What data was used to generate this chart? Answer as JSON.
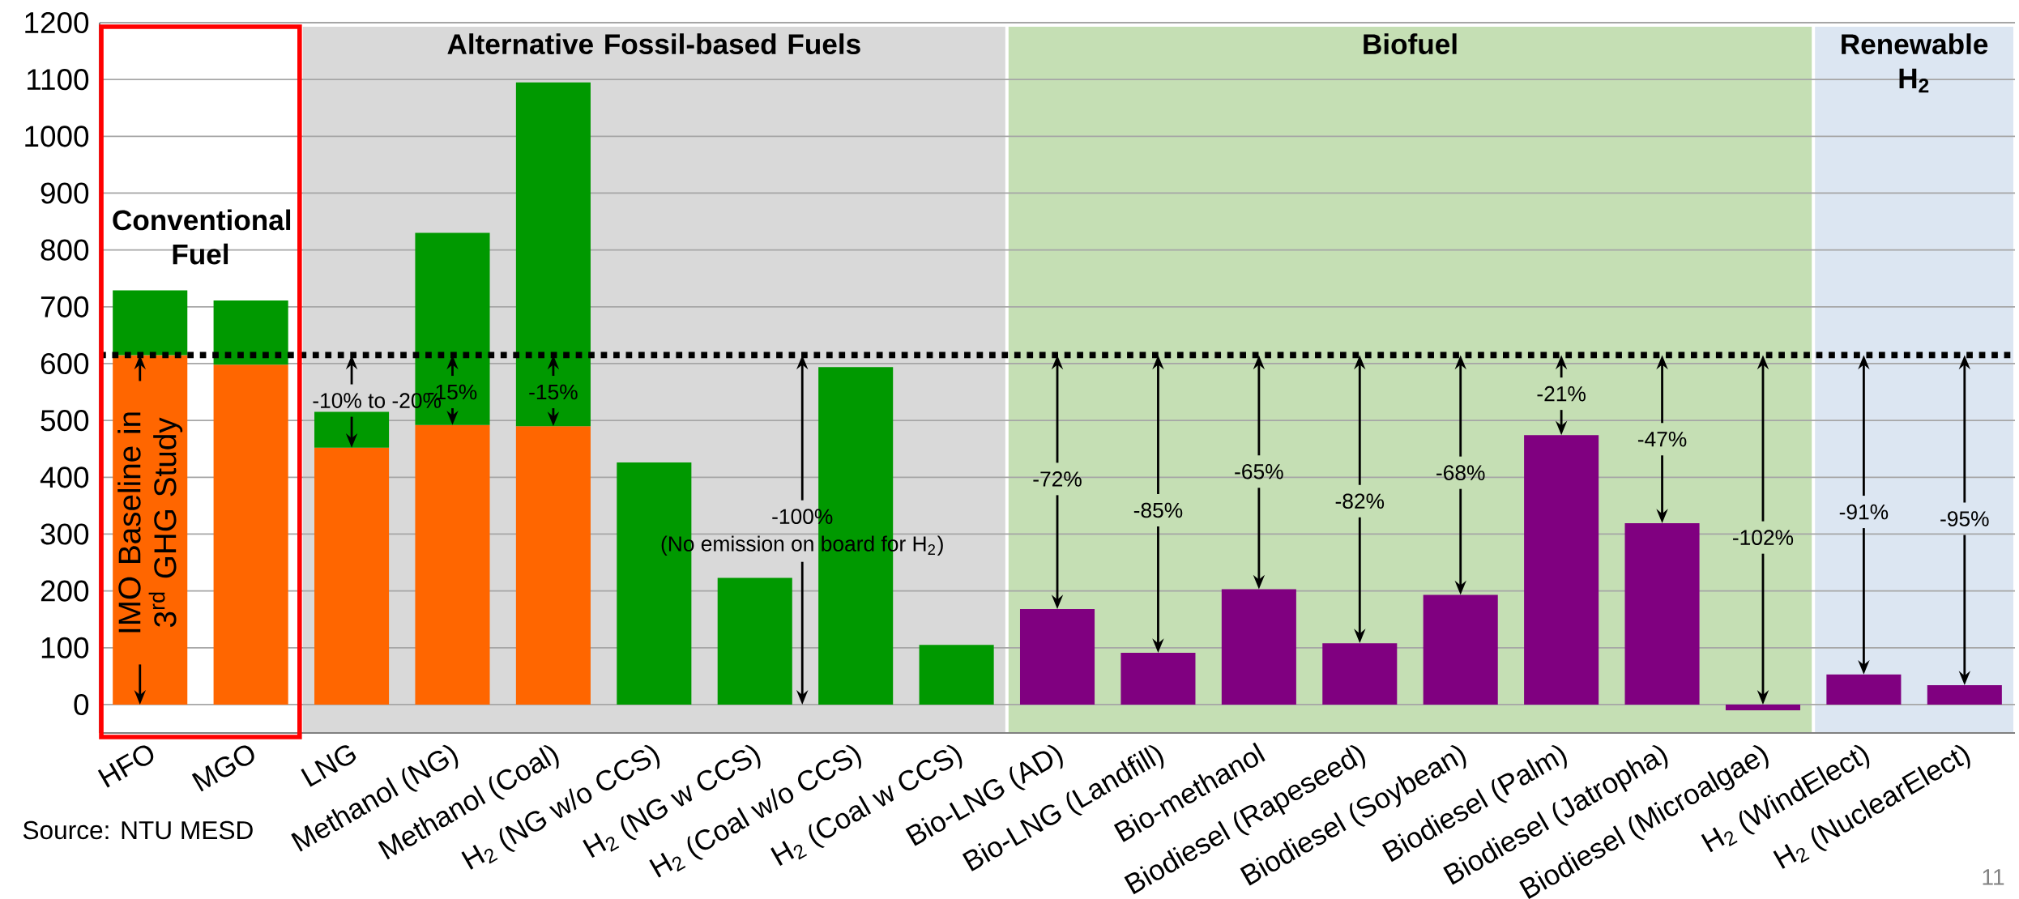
{
  "chart_data": {
    "type": "bar",
    "stacked": true,
    "categories": [
      "HFO",
      "MGO",
      "LNG",
      "Methanol (NG)",
      "Methanol (Coal)",
      "H$_{2}$ (NG w/o CCS)",
      "H$_{2}$ (NG w CCS)",
      "H$_{2}$ (Coal w/o CCS)",
      "H$_{2}$ (Coal w CCS)",
      "Bio-LNG (AD)",
      "Bio-LNG (Landfill)",
      "Bio-methanol",
      "Biodiesel (Rapeseed)",
      "Biodiesel (Soybean)",
      "Biodiesel (Palm)",
      "Biodiesel (Jatropha)",
      "Biodiesel (Microalgae)",
      "H$_{2}$ (WindElect)",
      "H$_{2}$ (NuclearElect)"
    ],
    "series": [
      {
        "color": "#ff6600",
        "values": [
          615,
          598,
          452,
          492,
          490,
          null,
          null,
          null,
          null,
          null,
          null,
          null,
          null,
          null,
          null,
          null,
          null,
          null,
          null
        ]
      },
      {
        "color": "#009900",
        "values": [
          114,
          113,
          63,
          338,
          605,
          426,
          223,
          594,
          105,
          null,
          null,
          null,
          null,
          null,
          null,
          null,
          null,
          null,
          null
        ]
      },
      {
        "color": "#800080",
        "values": [
          null,
          null,
          null,
          null,
          null,
          null,
          null,
          null,
          null,
          168,
          91,
          203,
          108,
          193,
          474,
          319,
          -10,
          53,
          34
        ]
      }
    ],
    "ylim": [
      -50,
      1200
    ],
    "yticks": [
      0,
      100,
      200,
      300,
      400,
      500,
      600,
      700,
      800,
      900,
      1000,
      1100,
      1200
    ],
    "grid": "y",
    "ref_lines": [
      {
        "axis": "y",
        "value": 615,
        "color": "#000000",
        "line_style": "dotted"
      }
    ],
    "annotations": [
      "IMO Baseline in 3$^{rd}$ GHG Study",
      "-10% to -20%",
      "-15%",
      "-15%",
      "-100%",
      "(No emission on board for H$_{2}$)",
      "-72%",
      "-85%",
      "-65%",
      "-82%",
      "-68%",
      "-21%",
      "-47%",
      "-102%",
      "-91%",
      "-95%",
      "Conventional Fuel",
      "Alternative Fossil-based Fuels",
      "Biofuel",
      "Renewable H$_{2}$",
      "Source: NTU MESD",
      "11"
    ]
  }
}
